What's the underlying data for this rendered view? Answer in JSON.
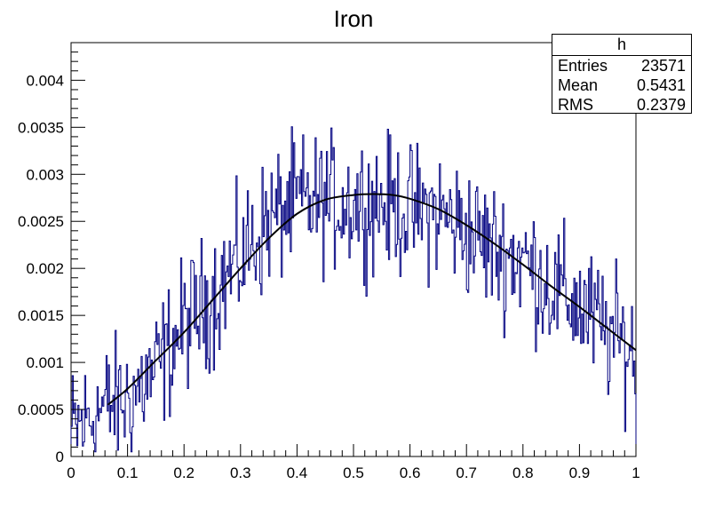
{
  "chart_data": {
    "type": "histogram",
    "title": "Iron",
    "xlabel": "",
    "ylabel": "",
    "xlim": [
      0,
      1
    ],
    "ylim": [
      0,
      0.0044
    ],
    "x_ticks": [
      "0",
      "0.1",
      "0.2",
      "0.3",
      "0.4",
      "0.5",
      "0.6",
      "0.7",
      "0.8",
      "0.9",
      "1"
    ],
    "y_ticks": [
      "0",
      "0.0005",
      "0.001",
      "0.0015",
      "0.002",
      "0.0025",
      "0.003",
      "0.0035",
      "0.004"
    ],
    "histogram_color": "#000080",
    "fit_color": "#000000",
    "fit_curve": {
      "x": [
        0.065,
        0.1,
        0.15,
        0.2,
        0.25,
        0.3,
        0.35,
        0.4,
        0.45,
        0.5,
        0.535,
        0.57,
        0.6,
        0.65,
        0.7,
        0.75,
        0.8,
        0.85,
        0.9,
        0.95,
        1.0
      ],
      "y": [
        0.00055,
        0.00072,
        0.00102,
        0.00132,
        0.00166,
        0.002,
        0.00232,
        0.00258,
        0.00273,
        0.00278,
        0.00279,
        0.00278,
        0.00274,
        0.00263,
        0.00246,
        0.00226,
        0.00204,
        0.00181,
        0.00159,
        0.00136,
        0.00113
      ]
    },
    "histogram_envelope": {
      "x": [
        0.0,
        0.05,
        0.1,
        0.15,
        0.2,
        0.25,
        0.3,
        0.35,
        0.4,
        0.45,
        0.5,
        0.55,
        0.6,
        0.65,
        0.7,
        0.75,
        0.8,
        0.85,
        0.9,
        0.95,
        1.0
      ],
      "y": [
        0.00025,
        0.0005,
        0.0006,
        0.0009,
        0.0014,
        0.0017,
        0.0021,
        0.0025,
        0.0027,
        0.0027,
        0.0027,
        0.0027,
        0.0026,
        0.0026,
        0.0024,
        0.0022,
        0.0021,
        0.0018,
        0.0016,
        0.0013,
        0.0011
      ]
    }
  },
  "stats_box": {
    "name": "h",
    "entries_label": "Entries",
    "entries_value": "23571",
    "mean_label": "Mean",
    "mean_value": "0.5431",
    "rms_label": "RMS",
    "rms_value": "0.2379"
  }
}
